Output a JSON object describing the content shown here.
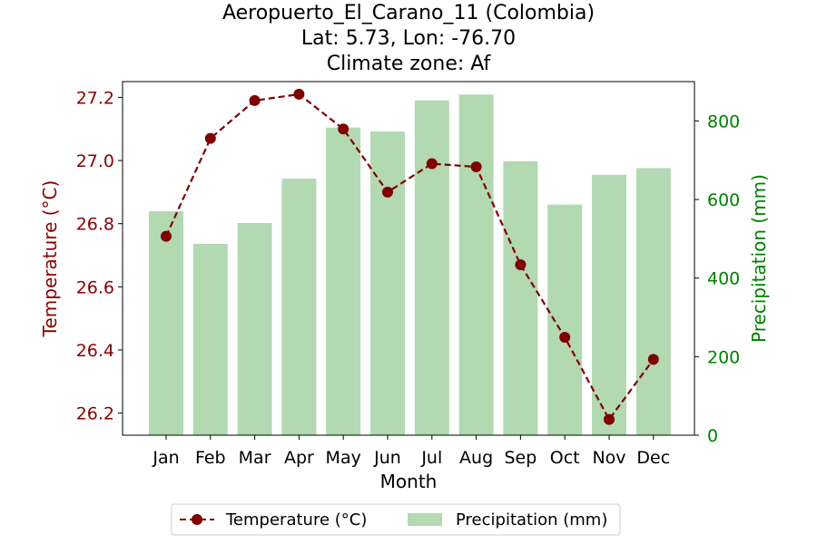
{
  "chart_data": {
    "type": "bar+line",
    "title_lines": [
      "Aeropuerto_El_Carano_11 (Colombia)",
      "Lat: 5.73, Lon: -76.70",
      "Climate zone: Af"
    ],
    "xlabel": "Month",
    "ylabel_left": "Temperature (°C)",
    "ylabel_right": "Precipitation (mm)",
    "categories": [
      "Jan",
      "Feb",
      "Mar",
      "Apr",
      "May",
      "Jun",
      "Jul",
      "Aug",
      "Sep",
      "Oct",
      "Nov",
      "Dec"
    ],
    "temperature": {
      "name": "Temperature (°C)",
      "values": [
        26.76,
        27.07,
        27.19,
        27.21,
        27.1,
        26.9,
        26.99,
        26.98,
        26.67,
        26.44,
        26.18,
        26.37
      ],
      "color": "#800000",
      "style": "dashed line with circle markers"
    },
    "precipitation": {
      "name": "Precipitation (mm)",
      "values": [
        570,
        487,
        540,
        653,
        783,
        773,
        852,
        867,
        697,
        587,
        663,
        680
      ],
      "color": "#b2d9b2"
    },
    "ylim_left": [
      26.13,
      27.25
    ],
    "ylim_right": [
      0,
      900
    ],
    "yticks_left": [
      26.2,
      26.4,
      26.6,
      26.8,
      27.0,
      27.2
    ],
    "yticks_left_labels": [
      "26.2",
      "26.4",
      "26.6",
      "26.8",
      "27.0",
      "27.2"
    ],
    "yticks_right": [
      0,
      200,
      400,
      600,
      800
    ],
    "yticks_right_labels": [
      "0",
      "200",
      "400",
      "600",
      "800"
    ],
    "left_axis_color": "#8b0000",
    "right_axis_color": "#008000",
    "legend_placement": "bottom-center",
    "grid": false
  }
}
